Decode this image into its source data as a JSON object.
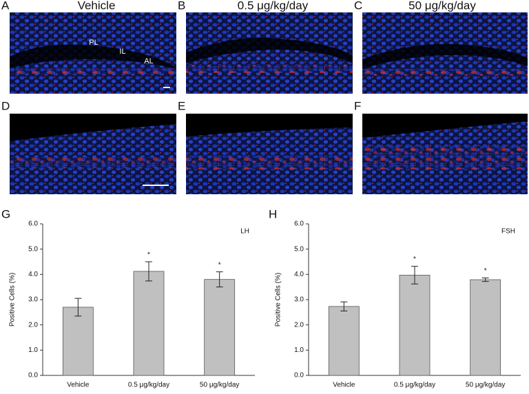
{
  "panel_letters": [
    "A",
    "B",
    "C",
    "D",
    "E",
    "F",
    "G",
    "H"
  ],
  "column_titles": [
    "Vehicle",
    "0.5 μg/kg/day",
    "50 μg/kg/day"
  ],
  "image_labels": [
    "PL",
    "IL",
    "AL"
  ],
  "chart_data": [
    {
      "type": "bar",
      "title": "LH",
      "y_label": "Positive Cells (%)",
      "categories": [
        "Vehicle",
        "0.5 μg/kg/day",
        "50 μg/kg/day"
      ],
      "values": [
        2.7,
        4.12,
        3.8
      ],
      "errors": [
        0.35,
        0.38,
        0.3
      ],
      "color": "#c0c0c0",
      "annotations": [
        {
          "text": "*",
          "category": "0.5 μg/kg/day"
        },
        {
          "text": "*",
          "category": "50 μg/kg/day"
        }
      ],
      "ylim": [
        0,
        6
      ],
      "yticks": [
        {
          "value": 0,
          "label": "0.0"
        },
        {
          "value": 1,
          "label": "1.0"
        },
        {
          "value": 2,
          "label": "2.0"
        },
        {
          "value": 3,
          "label": "3.0"
        },
        {
          "value": 4,
          "label": "4.0"
        },
        {
          "value": 5,
          "label": "5.0"
        },
        {
          "value": 6,
          "label": "6.0"
        }
      ]
    },
    {
      "type": "bar",
      "title": "FSH",
      "y_label": "Positive Cells (%)",
      "categories": [
        "Vehicle",
        "0.5 μg/kg/day",
        "50 μg/kg/day"
      ],
      "values": [
        2.73,
        3.97,
        3.79
      ],
      "errors": [
        0.18,
        0.35,
        0.07
      ],
      "color": "#c0c0c0",
      "annotations": [
        {
          "text": "*",
          "category": "0.5 μg/kg/day"
        },
        {
          "text": "*",
          "category": "50 μg/kg/day"
        }
      ],
      "ylim": [
        0,
        6
      ],
      "yticks": [
        {
          "value": 0,
          "label": "0.0"
        },
        {
          "value": 1,
          "label": "1.0"
        },
        {
          "value": 2,
          "label": "2.0"
        },
        {
          "value": 3,
          "label": "3.0"
        },
        {
          "value": 4,
          "label": "4.0"
        },
        {
          "value": 5,
          "label": "5.0"
        },
        {
          "value": 6,
          "label": "6.0"
        }
      ]
    }
  ]
}
